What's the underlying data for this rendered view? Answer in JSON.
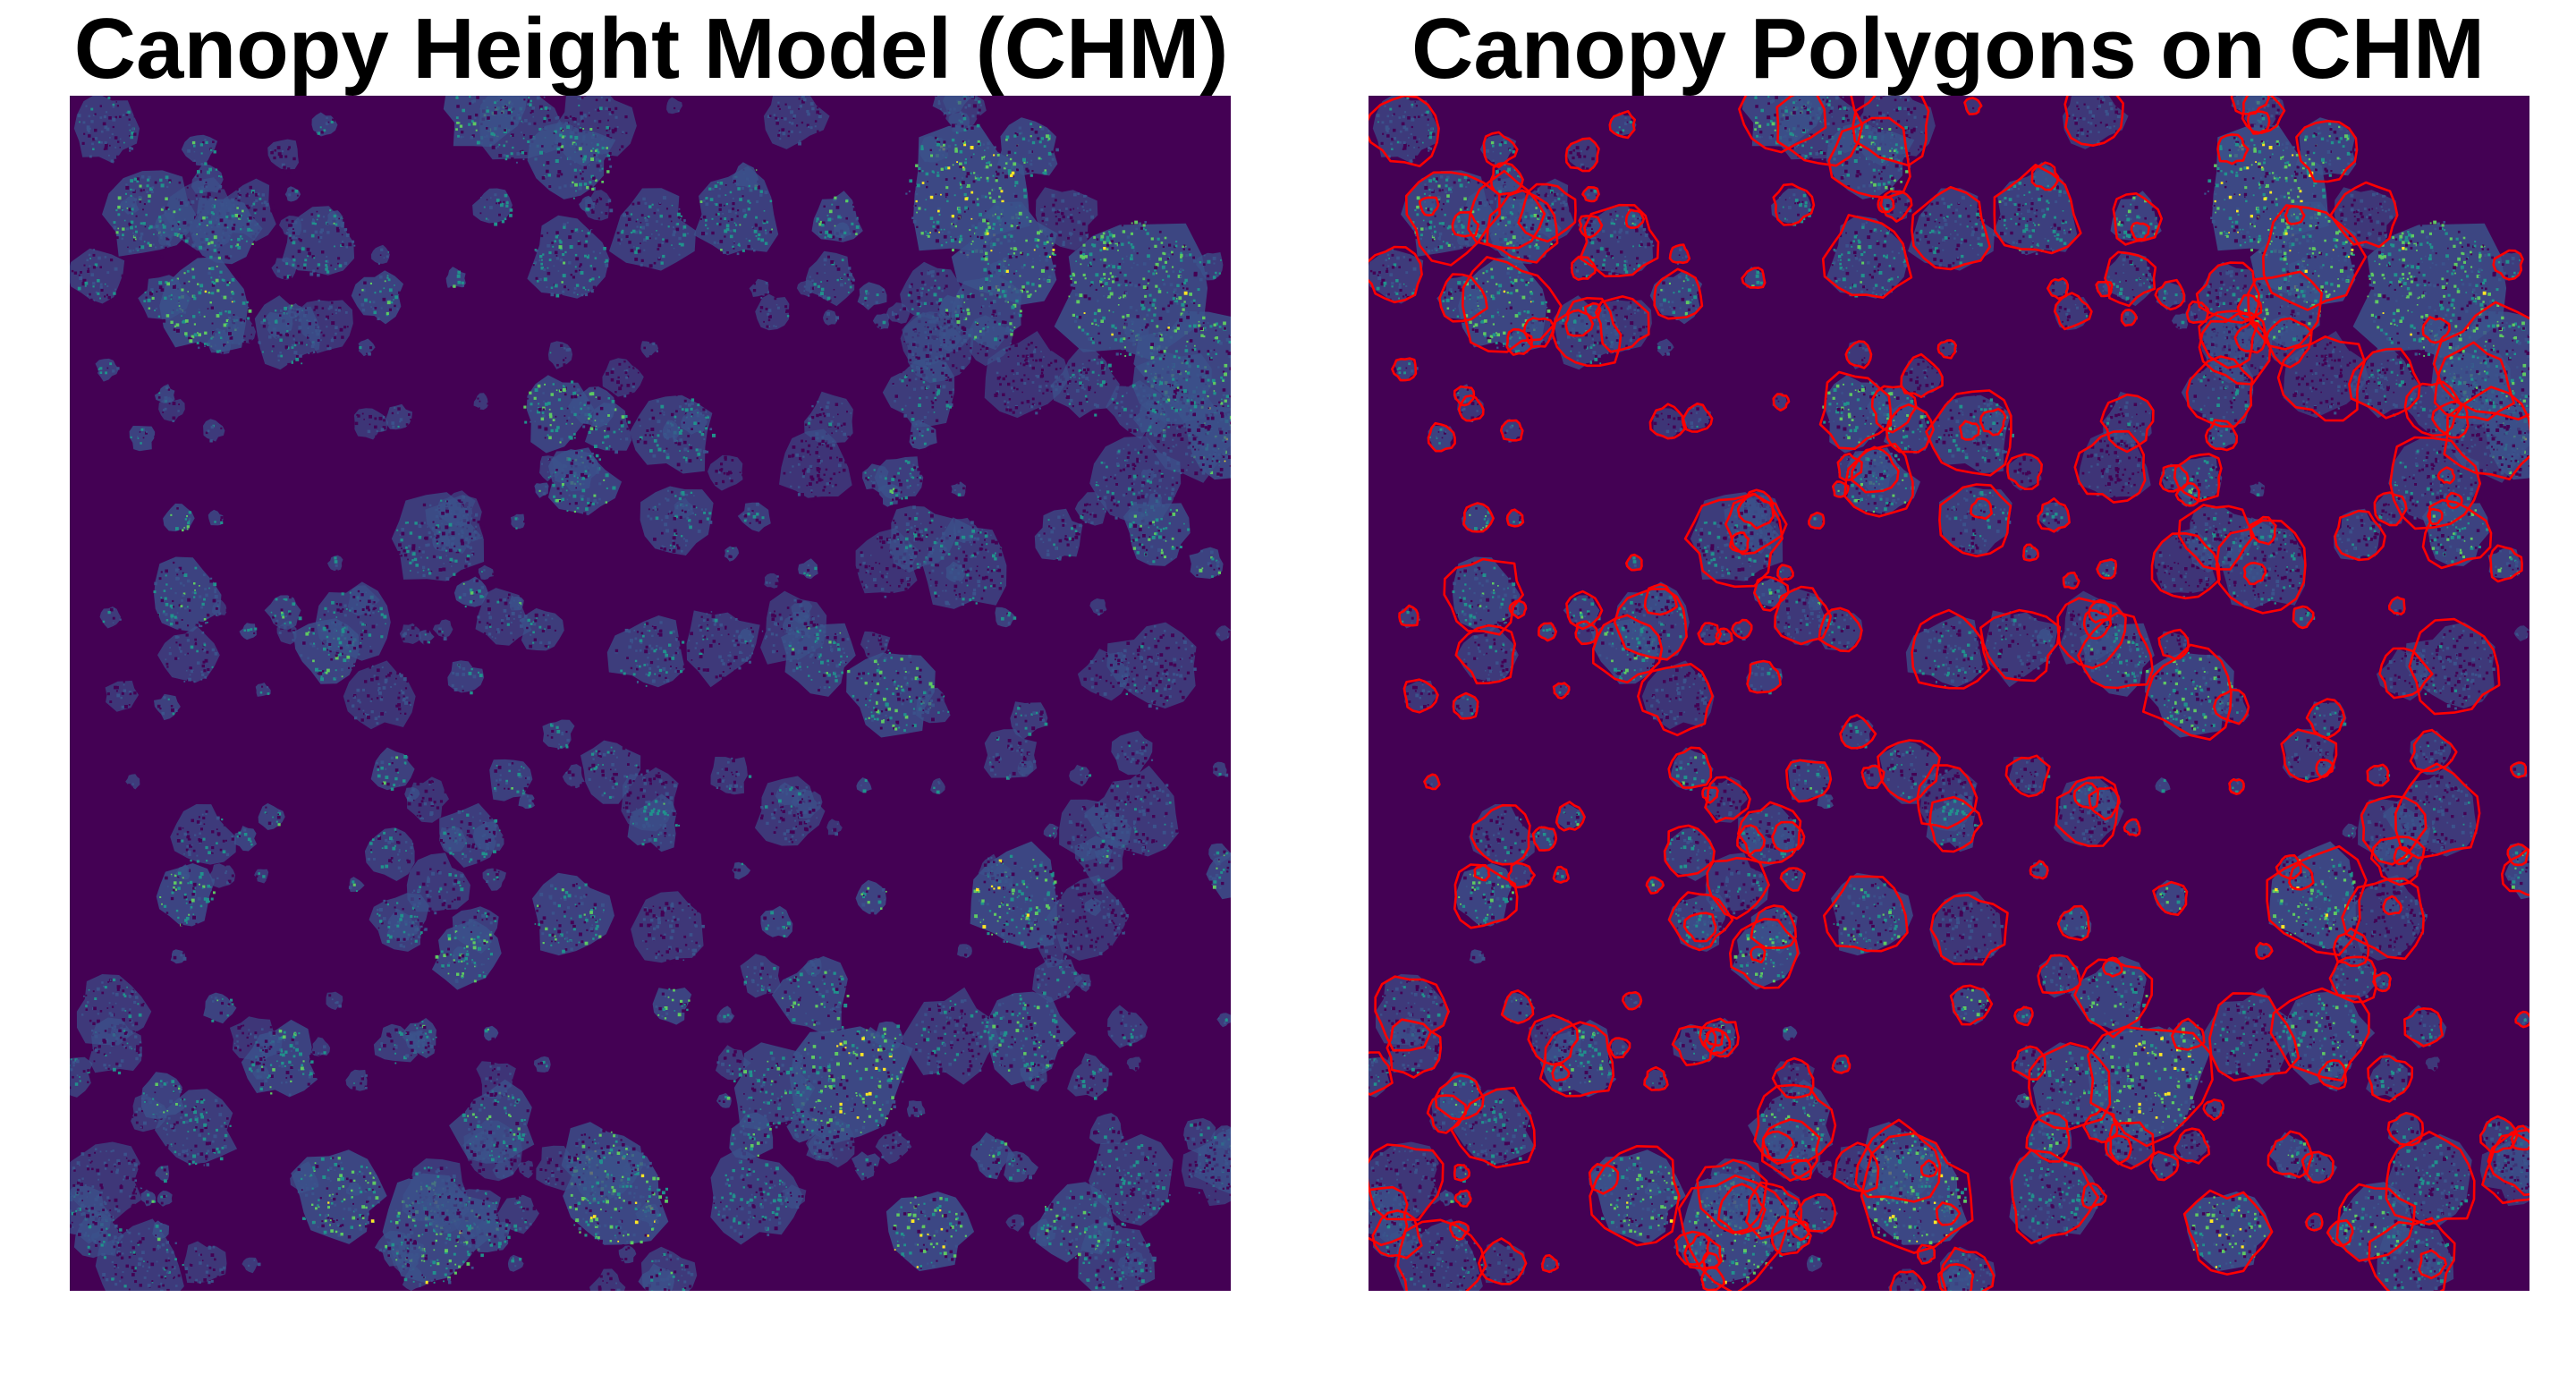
{
  "figure": {
    "left_panel": {
      "title": "Canopy Height Model (CHM)"
    },
    "right_panel": {
      "title": "Canopy Polygons on CHM"
    }
  },
  "colors": {
    "background": "#ffffff",
    "title_text": "#000000",
    "chm_ground": "#440154",
    "chm_low": "#3b528b",
    "chm_mid": "#21918c",
    "chm_high": "#5ec962",
    "chm_peak": "#fde725",
    "polygon_outline": "#ff0000"
  },
  "rendering": {
    "colormap": "viridis",
    "polygon_style": "outline"
  }
}
